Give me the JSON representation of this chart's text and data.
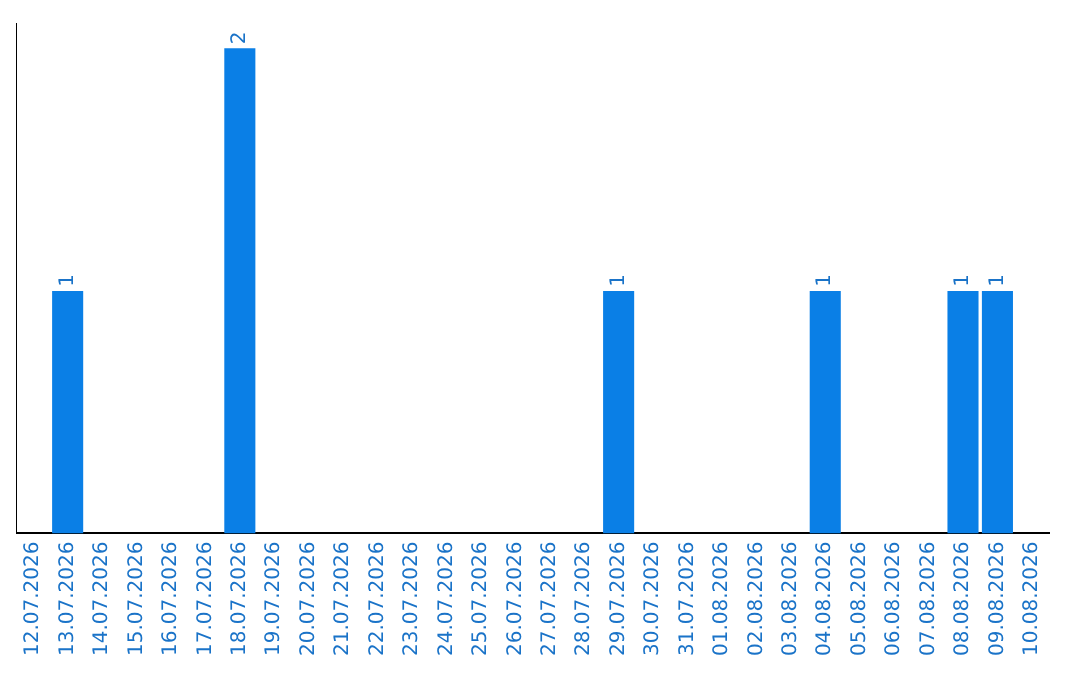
{
  "chart_data": {
    "type": "bar",
    "categories": [
      "12.07.2026",
      "13.07.2026",
      "14.07.2026",
      "15.07.2026",
      "16.07.2026",
      "17.07.2026",
      "18.07.2026",
      "19.07.2026",
      "20.07.2026",
      "21.07.2026",
      "22.07.2026",
      "23.07.2026",
      "24.07.2026",
      "25.07.2026",
      "26.07.2026",
      "27.07.2026",
      "28.07.2026",
      "29.07.2026",
      "30.07.2026",
      "31.07.2026",
      "01.08.2026",
      "02.08.2026",
      "03.08.2026",
      "04.08.2026",
      "05.08.2026",
      "06.08.2026",
      "07.08.2026",
      "08.08.2026",
      "09.08.2026",
      "10.08.2026"
    ],
    "values": [
      0,
      1,
      0,
      0,
      0,
      0,
      2,
      0,
      0,
      0,
      0,
      0,
      0,
      0,
      0,
      0,
      0,
      1,
      0,
      0,
      0,
      0,
      0,
      1,
      0,
      0,
      0,
      1,
      1,
      0
    ],
    "value_labels": [
      null,
      "1",
      null,
      null,
      null,
      null,
      "2",
      null,
      null,
      null,
      null,
      null,
      null,
      null,
      null,
      null,
      null,
      "1",
      null,
      null,
      null,
      null,
      null,
      "1",
      null,
      null,
      null,
      "1",
      "1",
      null
    ],
    "color": "#0a7fe6",
    "ylim": [
      0,
      2.1
    ],
    "tick_labels": "x",
    "grid": false,
    "legend": false
  }
}
